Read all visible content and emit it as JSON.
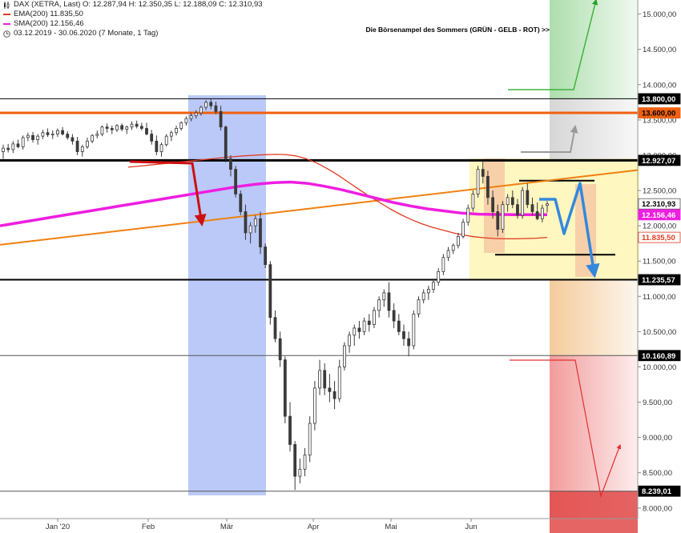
{
  "legend": {
    "header": "DAX (XETRA, Last)  O: 12.287,94  H: 12.350,35  L: 12.188,09  C: 12.310,93",
    "ema": "EMA(200)  11.835,50",
    "sma": "SMA(200)  12.156,46",
    "range": "03.12.2019 - 30.06.2020  (7 Monate, 1 Tag)"
  },
  "annotation": "Die Börsenampel des Sommers (GRÜN - GELB - ROT) >>",
  "colors": {
    "candle": "#3a3a3a",
    "ema": "#e03a20",
    "sma": "#ee1ee0",
    "trend": "#f08010",
    "resistance_orange": "#f06010",
    "red_arrow": "#cc1010",
    "blue_arrow": "#3388dd",
    "green_zone": "#9fd89f",
    "grey_zone": "#cfcfcf",
    "orange_zone": "#f2c28a",
    "red_zone": "#f08a8a",
    "blue_band": "#6688f0",
    "yellow_band": "#fff4b0"
  },
  "chart_data": {
    "type": "candlestick",
    "title": "",
    "instrument": "DAX (XETRA, Last)",
    "ylim": [
      7850,
      15200
    ],
    "y_ticks": [
      8000,
      8500,
      9000,
      9500,
      10000,
      10500,
      11000,
      11500,
      12000,
      12500,
      13000,
      13500,
      14000,
      14500,
      15000
    ],
    "y_tick_labels": [
      "8.000,00",
      "8.500,00",
      "9.000,00",
      "9.500,00",
      "10.000,00",
      "10.500,00",
      "11.000,00",
      "11.500,00",
      "12.000,00",
      "12.500,00",
      "13.000,00",
      "13.500,00",
      "14.000,00",
      "14.500,00",
      "15.000,00"
    ],
    "x_labels": [
      {
        "label": "Jan '20",
        "date": "2020-01-02"
      },
      {
        "label": "Feb",
        "date": "2020-02-03"
      },
      {
        "label": "Mär",
        "date": "2020-03-02"
      },
      {
        "label": "Apr",
        "date": "2020-04-01"
      },
      {
        "label": "Mai",
        "date": "2020-05-04"
      },
      {
        "label": "Jun",
        "date": "2020-06-01"
      }
    ],
    "candles": [
      {
        "o": 13050,
        "h": 13150,
        "l": 12950,
        "c": 13100
      },
      {
        "o": 13100,
        "h": 13160,
        "l": 13040,
        "c": 13080
      },
      {
        "o": 13080,
        "h": 13200,
        "l": 13030,
        "c": 13160
      },
      {
        "o": 13160,
        "h": 13220,
        "l": 13100,
        "c": 13120
      },
      {
        "o": 13120,
        "h": 13280,
        "l": 13080,
        "c": 13250
      },
      {
        "o": 13250,
        "h": 13320,
        "l": 13200,
        "c": 13280
      },
      {
        "o": 13280,
        "h": 13330,
        "l": 13180,
        "c": 13220
      },
      {
        "o": 13220,
        "h": 13300,
        "l": 13150,
        "c": 13270
      },
      {
        "o": 13270,
        "h": 13360,
        "l": 13230,
        "c": 13320
      },
      {
        "o": 13320,
        "h": 13380,
        "l": 13260,
        "c": 13290
      },
      {
        "o": 13290,
        "h": 13350,
        "l": 13230,
        "c": 13300
      },
      {
        "o": 13300,
        "h": 13380,
        "l": 13260,
        "c": 13350
      },
      {
        "o": 13350,
        "h": 13400,
        "l": 13280,
        "c": 13300
      },
      {
        "o": 13300,
        "h": 13340,
        "l": 13220,
        "c": 13250
      },
      {
        "o": 13250,
        "h": 13300,
        "l": 13150,
        "c": 13200
      },
      {
        "o": 13200,
        "h": 13260,
        "l": 13000,
        "c": 13050
      },
      {
        "o": 13050,
        "h": 13150,
        "l": 12980,
        "c": 13120
      },
      {
        "o": 13120,
        "h": 13250,
        "l": 13090,
        "c": 13200
      },
      {
        "o": 13200,
        "h": 13300,
        "l": 13170,
        "c": 13280
      },
      {
        "o": 13280,
        "h": 13350,
        "l": 13240,
        "c": 13300
      },
      {
        "o": 13300,
        "h": 13420,
        "l": 13270,
        "c": 13400
      },
      {
        "o": 13400,
        "h": 13450,
        "l": 13320,
        "c": 13380
      },
      {
        "o": 13380,
        "h": 13420,
        "l": 13300,
        "c": 13360
      },
      {
        "o": 13360,
        "h": 13440,
        "l": 13330,
        "c": 13420
      },
      {
        "o": 13420,
        "h": 13450,
        "l": 13340,
        "c": 13370
      },
      {
        "o": 13370,
        "h": 13420,
        "l": 13300,
        "c": 13400
      },
      {
        "o": 13400,
        "h": 13480,
        "l": 13360,
        "c": 13440
      },
      {
        "o": 13440,
        "h": 13490,
        "l": 13380,
        "c": 13410
      },
      {
        "o": 13410,
        "h": 13460,
        "l": 13350,
        "c": 13380
      },
      {
        "o": 13380,
        "h": 13460,
        "l": 13280,
        "c": 13300
      },
      {
        "o": 13300,
        "h": 13360,
        "l": 13150,
        "c": 13200
      },
      {
        "o": 13200,
        "h": 13280,
        "l": 13000,
        "c": 13050
      },
      {
        "o": 13050,
        "h": 13180,
        "l": 12980,
        "c": 13150
      },
      {
        "o": 13150,
        "h": 13300,
        "l": 13120,
        "c": 13270
      },
      {
        "o": 13270,
        "h": 13350,
        "l": 13200,
        "c": 13320
      },
      {
        "o": 13320,
        "h": 13420,
        "l": 13280,
        "c": 13380
      },
      {
        "o": 13380,
        "h": 13480,
        "l": 13350,
        "c": 13460
      },
      {
        "o": 13460,
        "h": 13550,
        "l": 13420,
        "c": 13520
      },
      {
        "o": 13520,
        "h": 13600,
        "l": 13480,
        "c": 13560
      },
      {
        "o": 13560,
        "h": 13640,
        "l": 13520,
        "c": 13600
      },
      {
        "o": 13600,
        "h": 13700,
        "l": 13560,
        "c": 13680
      },
      {
        "o": 13680,
        "h": 13780,
        "l": 13640,
        "c": 13750
      },
      {
        "o": 13750,
        "h": 13800,
        "l": 13650,
        "c": 13700
      },
      {
        "o": 13700,
        "h": 13760,
        "l": 13580,
        "c": 13620
      },
      {
        "o": 13620,
        "h": 13700,
        "l": 13350,
        "c": 13400
      },
      {
        "o": 13400,
        "h": 13420,
        "l": 12900,
        "c": 12950
      },
      {
        "o": 12950,
        "h": 13000,
        "l": 12700,
        "c": 12800
      },
      {
        "o": 12800,
        "h": 12850,
        "l": 12400,
        "c": 12450
      },
      {
        "o": 12450,
        "h": 12500,
        "l": 12150,
        "c": 12200
      },
      {
        "o": 12200,
        "h": 12300,
        "l": 11800,
        "c": 11900
      },
      {
        "o": 11900,
        "h": 12050,
        "l": 11750,
        "c": 12000
      },
      {
        "o": 12000,
        "h": 12150,
        "l": 11900,
        "c": 12100
      },
      {
        "o": 12100,
        "h": 12200,
        "l": 11600,
        "c": 11700
      },
      {
        "o": 11700,
        "h": 11750,
        "l": 11400,
        "c": 11450
      },
      {
        "o": 11450,
        "h": 11500,
        "l": 10600,
        "c": 10700
      },
      {
        "o": 10700,
        "h": 10800,
        "l": 10350,
        "c": 10400
      },
      {
        "o": 10400,
        "h": 10500,
        "l": 10000,
        "c": 10100
      },
      {
        "o": 10100,
        "h": 10150,
        "l": 9200,
        "c": 9300
      },
      {
        "o": 9300,
        "h": 9500,
        "l": 8800,
        "c": 8900
      },
      {
        "o": 8900,
        "h": 8950,
        "l": 8255,
        "c": 8450
      },
      {
        "o": 8450,
        "h": 8700,
        "l": 8350,
        "c": 8550
      },
      {
        "o": 8550,
        "h": 8850,
        "l": 8450,
        "c": 8750
      },
      {
        "o": 8750,
        "h": 9300,
        "l": 8650,
        "c": 9200
      },
      {
        "o": 9200,
        "h": 9800,
        "l": 9100,
        "c": 9700
      },
      {
        "o": 9700,
        "h": 10100,
        "l": 9600,
        "c": 9950
      },
      {
        "o": 9950,
        "h": 10050,
        "l": 9600,
        "c": 9700
      },
      {
        "o": 9700,
        "h": 9900,
        "l": 9500,
        "c": 9650
      },
      {
        "o": 9650,
        "h": 9800,
        "l": 9400,
        "c": 9550
      },
      {
        "o": 9550,
        "h": 10100,
        "l": 9500,
        "c": 10000
      },
      {
        "o": 10000,
        "h": 10350,
        "l": 9950,
        "c": 10300
      },
      {
        "o": 10300,
        "h": 10500,
        "l": 10200,
        "c": 10450
      },
      {
        "o": 10450,
        "h": 10600,
        "l": 10300,
        "c": 10550
      },
      {
        "o": 10550,
        "h": 10650,
        "l": 10400,
        "c": 10500
      },
      {
        "o": 10500,
        "h": 10700,
        "l": 10450,
        "c": 10650
      },
      {
        "o": 10650,
        "h": 10750,
        "l": 10500,
        "c": 10600
      },
      {
        "o": 10600,
        "h": 10850,
        "l": 10550,
        "c": 10800
      },
      {
        "o": 10800,
        "h": 11000,
        "l": 10700,
        "c": 10950
      },
      {
        "o": 10950,
        "h": 11100,
        "l": 10850,
        "c": 11050
      },
      {
        "o": 11050,
        "h": 11200,
        "l": 10700,
        "c": 10800
      },
      {
        "o": 10800,
        "h": 10900,
        "l": 10550,
        "c": 10650
      },
      {
        "o": 10650,
        "h": 10750,
        "l": 10450,
        "c": 10500
      },
      {
        "o": 10500,
        "h": 10600,
        "l": 10300,
        "c": 10400
      },
      {
        "o": 10400,
        "h": 10500,
        "l": 10150,
        "c": 10300
      },
      {
        "o": 10300,
        "h": 10800,
        "l": 10250,
        "c": 10750
      },
      {
        "o": 10750,
        "h": 11000,
        "l": 10700,
        "c": 10950
      },
      {
        "o": 10950,
        "h": 11100,
        "l": 10900,
        "c": 11050
      },
      {
        "o": 11050,
        "h": 11150,
        "l": 10950,
        "c": 11100
      },
      {
        "o": 11100,
        "h": 11250,
        "l": 11050,
        "c": 11200
      },
      {
        "o": 11200,
        "h": 11400,
        "l": 11150,
        "c": 11350
      },
      {
        "o": 11350,
        "h": 11600,
        "l": 11300,
        "c": 11550
      },
      {
        "o": 11550,
        "h": 11700,
        "l": 11500,
        "c": 11650
      },
      {
        "o": 11650,
        "h": 11750,
        "l": 11600,
        "c": 11720
      },
      {
        "o": 11720,
        "h": 11900,
        "l": 11680,
        "c": 11850
      },
      {
        "o": 11850,
        "h": 12100,
        "l": 11820,
        "c": 12050
      },
      {
        "o": 12050,
        "h": 12300,
        "l": 12000,
        "c": 12250
      },
      {
        "o": 12250,
        "h": 12500,
        "l": 12200,
        "c": 12450
      },
      {
        "o": 12450,
        "h": 12850,
        "l": 12400,
        "c": 12800
      },
      {
        "o": 12800,
        "h": 12920,
        "l": 12600,
        "c": 12700
      },
      {
        "o": 12700,
        "h": 12780,
        "l": 12300,
        "c": 12400
      },
      {
        "o": 12400,
        "h": 12500,
        "l": 12100,
        "c": 12200
      },
      {
        "o": 12200,
        "h": 12300,
        "l": 11850,
        "c": 11950
      },
      {
        "o": 11950,
        "h": 12350,
        "l": 11900,
        "c": 12300
      },
      {
        "o": 12300,
        "h": 12450,
        "l": 12200,
        "c": 12400
      },
      {
        "o": 12400,
        "h": 12500,
        "l": 12250,
        "c": 12300
      },
      {
        "o": 12300,
        "h": 12380,
        "l": 12100,
        "c": 12150
      },
      {
        "o": 12150,
        "h": 12550,
        "l": 12100,
        "c": 12500
      },
      {
        "o": 12500,
        "h": 12600,
        "l": 12250,
        "c": 12300
      },
      {
        "o": 12300,
        "h": 12400,
        "l": 12150,
        "c": 12200
      },
      {
        "o": 12200,
        "h": 12330,
        "l": 12080,
        "c": 12100
      },
      {
        "o": 12100,
        "h": 12300,
        "l": 12050,
        "c": 12250
      },
      {
        "o": 12287.94,
        "h": 12350.35,
        "l": 12188.09,
        "c": 12310.93
      }
    ],
    "series": [
      {
        "name": "EMA(200)",
        "last": 11835.5,
        "values": [
          12830,
          12845,
          12860,
          12875,
          12890,
          12905,
          12920,
          12935,
          12950,
          12965,
          12978,
          12990,
          13000,
          13008,
          13012,
          13010,
          12990,
          12950,
          12890,
          12810,
          12720,
          12620,
          12520,
          12420,
          12330,
          12240,
          12160,
          12090,
          12030,
          11980,
          11940,
          11900,
          11870,
          11845,
          11830,
          11820,
          11815,
          11815,
          11820,
          11825,
          11835.5
        ]
      },
      {
        "name": "SMA(200)",
        "last": 12156.46,
        "values": [
          12000,
          12040,
          12080,
          12120,
          12160,
          12200,
          12240,
          12280,
          12320,
          12360,
          12400,
          12440,
          12480,
          12520,
          12560,
          12590,
          12610,
          12620,
          12600,
          12560,
          12510,
          12450,
          12390,
          12330,
          12280,
          12240,
          12210,
          12180,
          12165,
          12160,
          12158,
          12157,
          12156.46
        ]
      }
    ],
    "horizontal_levels": [
      {
        "label": "13.800,00",
        "value": 13800
      },
      {
        "label": "13.600,00",
        "value": 13600
      },
      {
        "label": "12.927,07",
        "value": 12927.07
      },
      {
        "label": "12.310,93",
        "value": 12310.93
      },
      {
        "label": "12.156,46",
        "value": 12156.46
      },
      {
        "label": "11.835,50",
        "value": 11835.5
      },
      {
        "label": "11.235,57",
        "value": 11235.57
      },
      {
        "label": "10.160,89",
        "value": 10160.89
      },
      {
        "label": "8.239,01",
        "value": 8239.01
      }
    ],
    "zones": [
      {
        "name": "Grün",
        "from": 13800,
        "to": 15200
      },
      {
        "name": "Grau",
        "from": 12927.07,
        "to": 13800
      },
      {
        "name": "Gelb",
        "from": 10160.89,
        "to": 11235.57
      },
      {
        "name": "Rot",
        "from": 7850,
        "to": 10160.89
      }
    ],
    "grid": false,
    "legend_position": "top-left"
  }
}
